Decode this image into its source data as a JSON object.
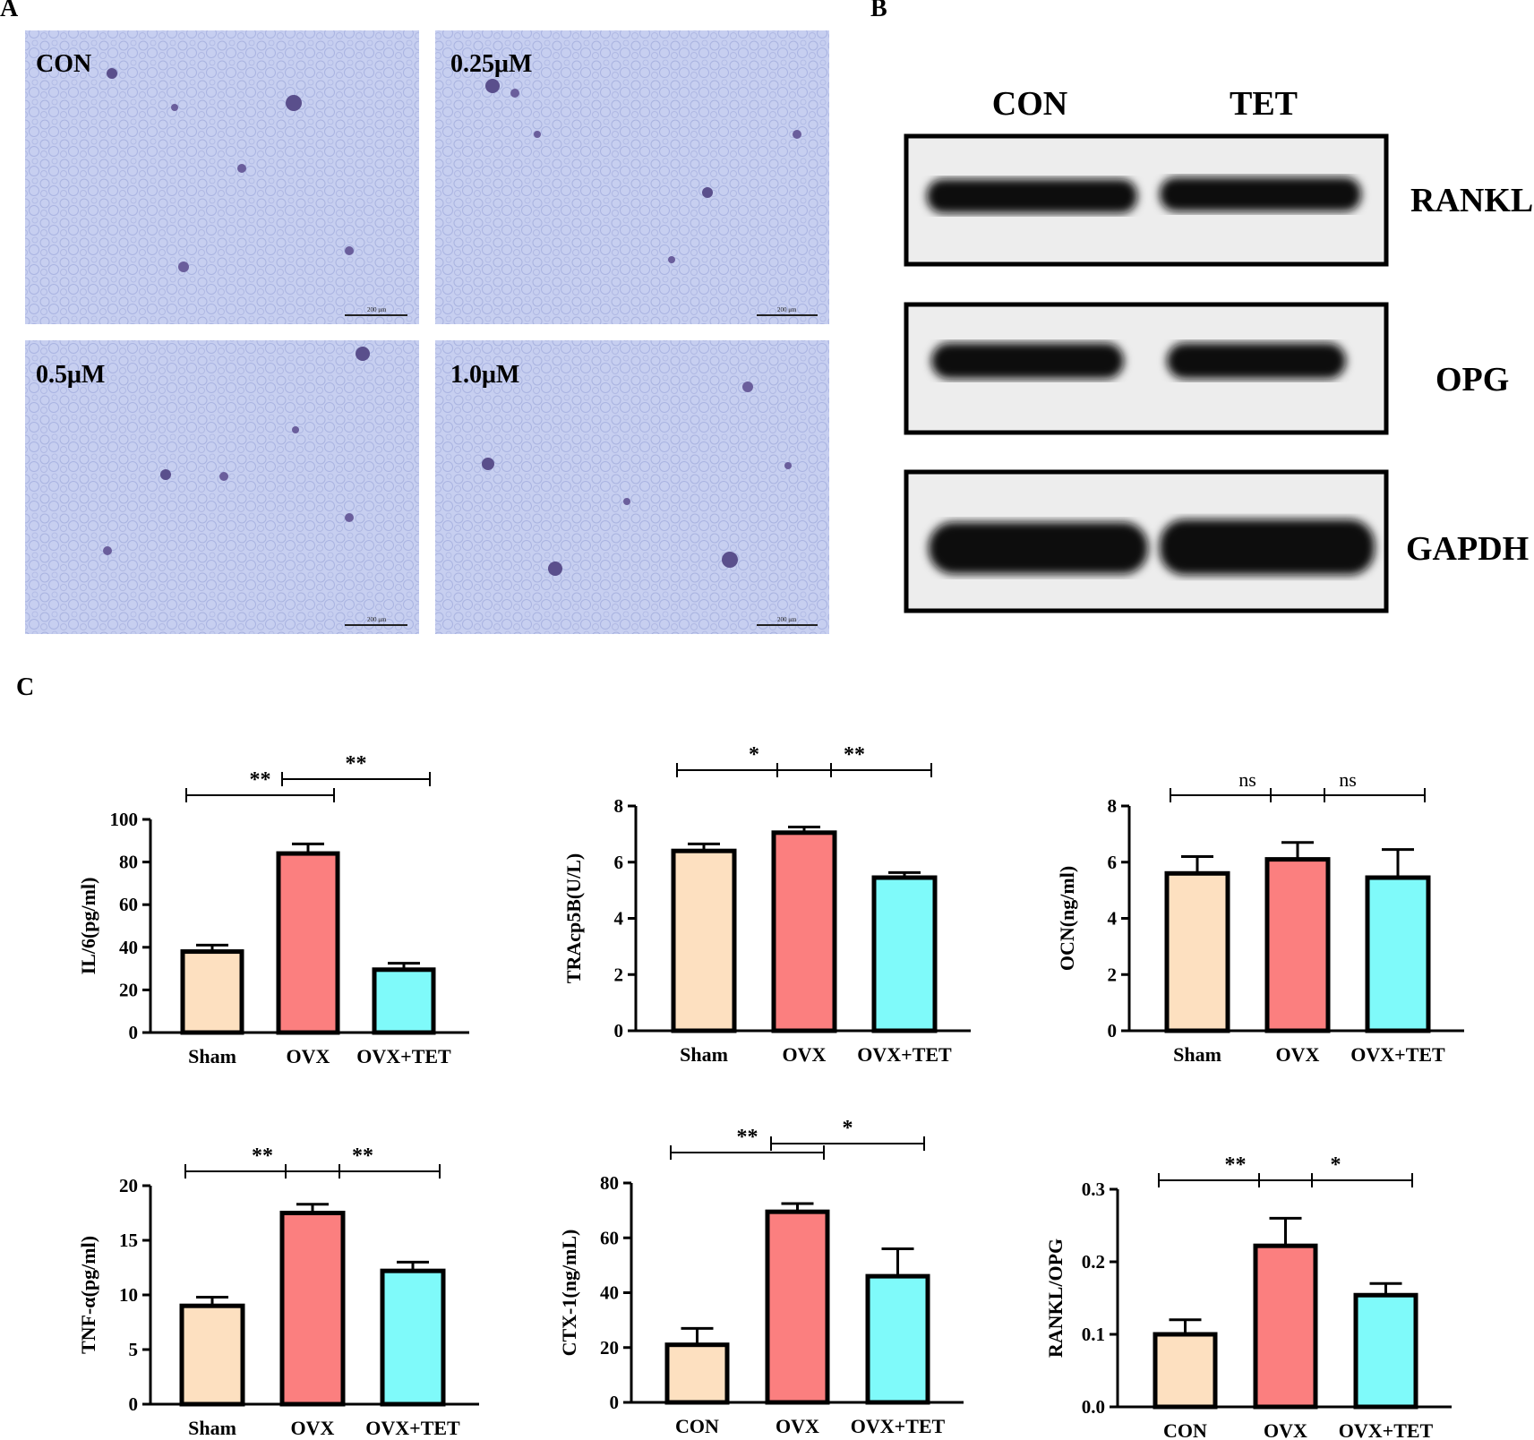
{
  "panels": {
    "a": "A",
    "b": "B",
    "c": "C"
  },
  "micrographs": [
    {
      "label": "CON",
      "scale_text": "200 μm"
    },
    {
      "label": "0.25μM",
      "scale_text": "200 μm"
    },
    {
      "label": "0.5μM",
      "scale_text": "200 μm"
    },
    {
      "label": "1.0μM",
      "scale_text": "200 μm"
    }
  ],
  "western_blot": {
    "lanes": [
      "CON",
      "TET"
    ],
    "proteins": [
      "RANKL",
      "OPG",
      "GAPDH"
    ]
  },
  "colors": {
    "bar1": "#fde0c0",
    "bar2": "#fb7f7f",
    "bar3": "#7ffafa",
    "stain": "#b9c3ec"
  },
  "chart_data": [
    {
      "type": "bar",
      "categories": [
        "Sham",
        "OVX",
        "OVX+TET"
      ],
      "values": [
        38,
        84,
        29.5
      ],
      "errors": [
        3,
        4.5,
        3
      ],
      "ylabel": "IL/6(pg/ml)",
      "ylim": [
        0,
        100
      ],
      "yticks": [
        0,
        20,
        40,
        60,
        80,
        100
      ],
      "significance": [
        {
          "from": 0,
          "to": 1,
          "label": "**"
        },
        {
          "from": 1,
          "to": 2,
          "label": "**"
        }
      ]
    },
    {
      "type": "bar",
      "categories": [
        "Sham",
        "OVX",
        "OVX+TET"
      ],
      "values": [
        6.4,
        7.05,
        5.45
      ],
      "errors": [
        0.25,
        0.2,
        0.18
      ],
      "ylabel": "TRAcp5B(U/L)",
      "ylim": [
        0,
        8
      ],
      "yticks": [
        0,
        2,
        4,
        6,
        8
      ],
      "significance": [
        {
          "from": 0,
          "to": 1,
          "label": "*"
        },
        {
          "from": 1,
          "to": 2,
          "label": "**"
        }
      ]
    },
    {
      "type": "bar",
      "categories": [
        "Sham",
        "OVX",
        "OVX+TET"
      ],
      "values": [
        5.6,
        6.1,
        5.45
      ],
      "errors": [
        0.6,
        0.6,
        1.0
      ],
      "ylabel": "OCN(ng/ml)",
      "ylim": [
        0,
        8
      ],
      "yticks": [
        0,
        2,
        4,
        6,
        8
      ],
      "significance": [
        {
          "from": 0,
          "to": 1,
          "label": "ns"
        },
        {
          "from": 1,
          "to": 2,
          "label": "ns"
        }
      ]
    },
    {
      "type": "bar",
      "categories": [
        "Sham",
        "OVX",
        "OVX+TET"
      ],
      "values": [
        9,
        17.5,
        12.2
      ],
      "errors": [
        0.8,
        0.8,
        0.8
      ],
      "ylabel": "TNF-α(pg/ml)",
      "ylim": [
        0,
        20
      ],
      "yticks": [
        0,
        5,
        10,
        15,
        20
      ],
      "significance": [
        {
          "from": 0,
          "to": 1,
          "label": "**"
        },
        {
          "from": 1,
          "to": 2,
          "label": "**"
        }
      ]
    },
    {
      "type": "bar",
      "categories": [
        "CON",
        "OVX",
        "OVX+TET"
      ],
      "values": [
        21,
        69.5,
        46
      ],
      "errors": [
        6,
        3,
        10
      ],
      "ylabel": "CTX-1(ng/mL)",
      "ylim": [
        0,
        80
      ],
      "yticks": [
        0,
        20,
        40,
        60,
        80
      ],
      "significance": [
        {
          "from": 0,
          "to": 1,
          "label": "**"
        },
        {
          "from": 1,
          "to": 2,
          "label": "*"
        }
      ]
    },
    {
      "type": "bar",
      "categories": [
        "CON",
        "OVX",
        "OVX+TET"
      ],
      "values": [
        0.1,
        0.222,
        0.154
      ],
      "errors": [
        0.02,
        0.038,
        0.016
      ],
      "ylabel": "RANKL/OPG",
      "ylim": [
        0,
        0.3
      ],
      "yticks": [
        "0.0",
        "0.1",
        "0.2",
        "0.3"
      ],
      "significance": [
        {
          "from": 0,
          "to": 1,
          "label": "**"
        },
        {
          "from": 1,
          "to": 2,
          "label": "*"
        }
      ]
    }
  ]
}
